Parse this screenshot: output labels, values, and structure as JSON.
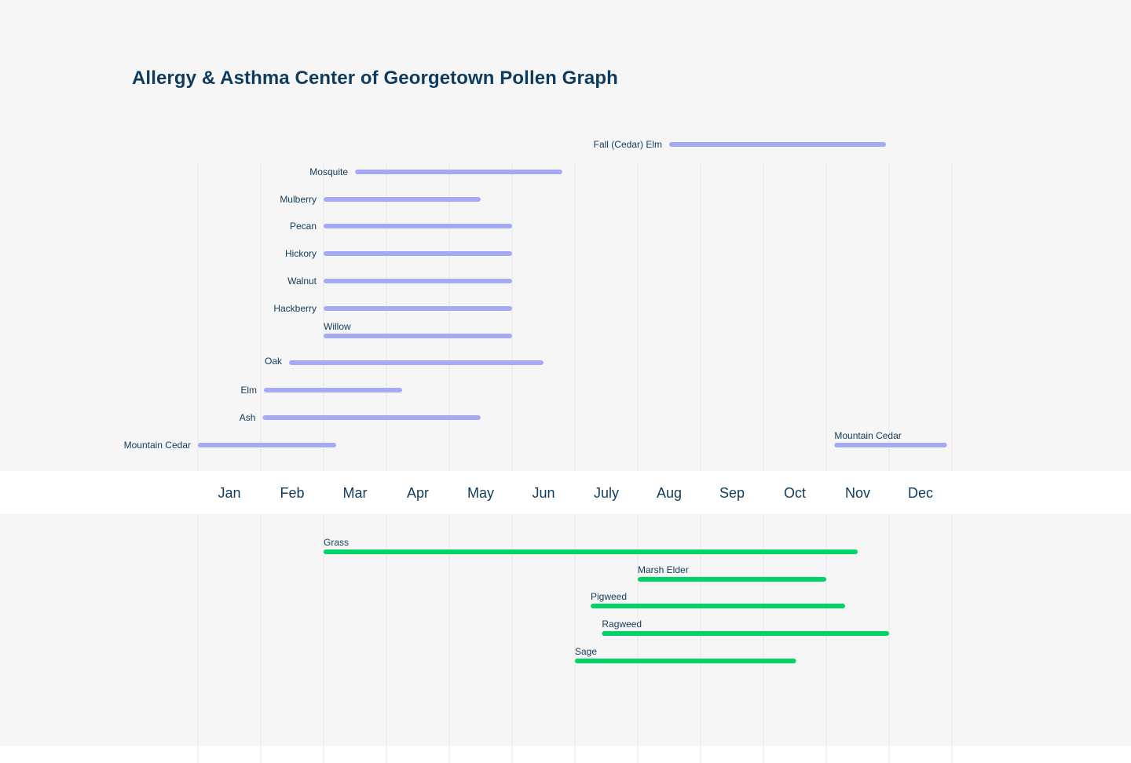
{
  "chart_data": {
    "type": "gantt",
    "title": "Allergy & Asthma Center of Georgetown Pollen Graph",
    "months": [
      "Jan",
      "Feb",
      "Mar",
      "Apr",
      "May",
      "Jun",
      "July",
      "Aug",
      "Sep",
      "Oct",
      "Nov",
      "Dec"
    ],
    "grid": true,
    "series": [
      {
        "group": "tree",
        "color": "#a6aaf6",
        "items": [
          {
            "name": "Fall (Cedar) Elm",
            "start": 7.5,
            "end": 10.95
          },
          {
            "name": "Mosquite",
            "start": 2.5,
            "end": 5.8
          },
          {
            "name": "Mulberry",
            "start": 2.0,
            "end": 4.5
          },
          {
            "name": "Pecan",
            "start": 2.0,
            "end": 5.0
          },
          {
            "name": "Hickory",
            "start": 2.0,
            "end": 5.0
          },
          {
            "name": "Walnut",
            "start": 2.0,
            "end": 5.0
          },
          {
            "name": "Hackberry",
            "start": 2.0,
            "end": 5.0
          },
          {
            "name": "Willow",
            "start": 2.0,
            "end": 5.0
          },
          {
            "name": "Oak",
            "start": 1.45,
            "end": 5.5
          },
          {
            "name": "Elm",
            "start": 1.05,
            "end": 3.25
          },
          {
            "name": "Ash",
            "start": 1.03,
            "end": 4.5
          },
          {
            "name": "Mountain Cedar",
            "start": 0.0,
            "end": 2.2
          },
          {
            "name": "Mountain Cedar",
            "start": 10.13,
            "end": 11.92
          }
        ]
      },
      {
        "group": "weed-grass",
        "color": "#00d466",
        "items": [
          {
            "name": "Grass",
            "start": 2.0,
            "end": 10.5
          },
          {
            "name": "Marsh Elder",
            "start": 7.0,
            "end": 10.0
          },
          {
            "name": "Pigweed",
            "start": 6.25,
            "end": 10.3
          },
          {
            "name": "Ragweed",
            "start": 6.43,
            "end": 11.0
          },
          {
            "name": "Sage",
            "start": 6.0,
            "end": 9.52
          }
        ]
      }
    ]
  }
}
